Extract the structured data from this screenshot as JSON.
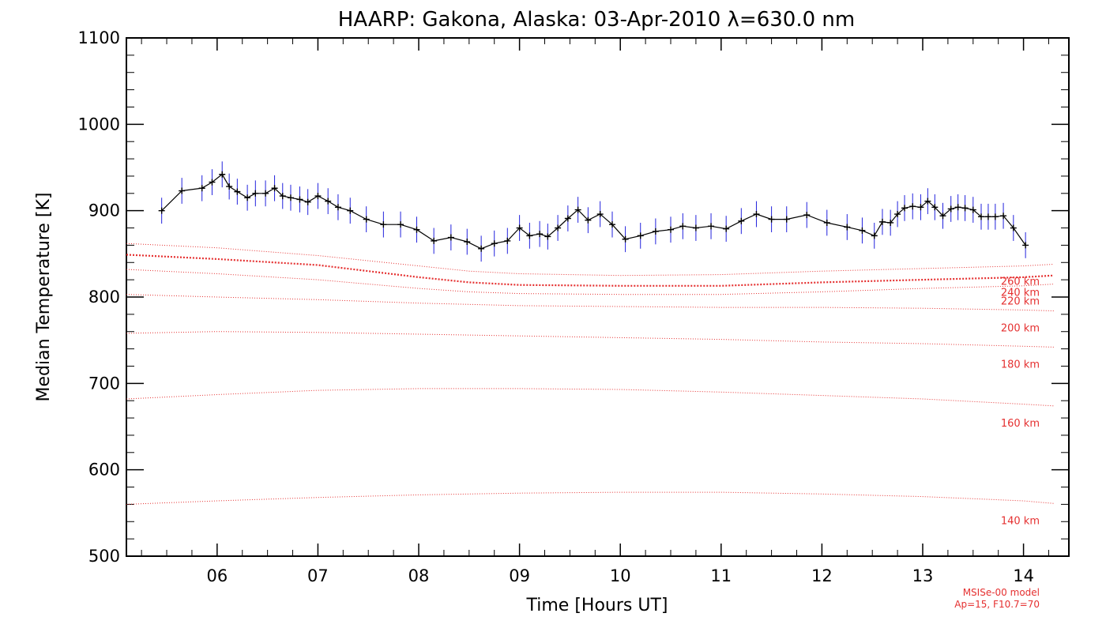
{
  "chart_data": {
    "type": "line",
    "title": "HAARP: Gakona,  Alaska: 03-Apr-2010 λ=630.0 nm",
    "xlabel": "Time [Hours UT]",
    "ylabel": "Median Temperature [K]",
    "xlim": [
      5.1,
      14.45
    ],
    "ylim": [
      500,
      1100
    ],
    "x_ticks": [
      6,
      7,
      8,
      9,
      10,
      11,
      12,
      13,
      14
    ],
    "x_tick_labels": [
      "06",
      "07",
      "08",
      "09",
      "10",
      "11",
      "12",
      "13",
      "14"
    ],
    "y_ticks": [
      500,
      600,
      700,
      800,
      900,
      1000,
      1100
    ],
    "y_tick_labels": [
      "500",
      "600",
      "700",
      "800",
      "900",
      "1000",
      "1100"
    ],
    "grid": false,
    "colors": {
      "data_line": "#000000",
      "error_bars": "#2222dd",
      "model": "#e53030"
    },
    "series": [
      {
        "x": [
          5.45,
          5.65,
          5.85,
          5.95,
          6.05,
          6.12,
          6.2,
          6.3,
          6.38,
          6.48,
          6.57,
          6.65,
          6.73,
          6.82,
          6.9,
          7.0,
          7.1,
          7.2,
          7.32,
          7.48,
          7.65,
          7.82,
          7.98,
          8.15,
          8.32,
          8.48,
          8.62,
          8.75,
          8.88,
          9.0,
          9.1,
          9.2,
          9.28,
          9.38,
          9.48,
          9.58,
          9.68,
          9.8,
          9.92,
          10.05,
          10.2,
          10.35,
          10.5,
          10.62,
          10.75,
          10.9,
          11.05,
          11.2,
          11.35,
          11.5,
          11.65,
          11.85,
          12.05,
          12.25,
          12.4,
          12.52,
          12.6,
          12.68,
          12.75,
          12.82,
          12.9,
          12.98,
          13.05,
          13.12,
          13.2,
          13.28,
          13.35,
          13.42,
          13.5,
          13.58,
          13.65,
          13.72,
          13.8,
          13.9,
          14.02
        ],
        "y": [
          900,
          923,
          926,
          933,
          942,
          928,
          922,
          915,
          920,
          920,
          926,
          917,
          915,
          913,
          910,
          917,
          911,
          904,
          900,
          890,
          884,
          884,
          878,
          865,
          869,
          864,
          856,
          862,
          865,
          880,
          871,
          873,
          870,
          880,
          891,
          901,
          889,
          896,
          884,
          867,
          871,
          876,
          878,
          882,
          880,
          882,
          879,
          888,
          896,
          890,
          890,
          895,
          886,
          881,
          877,
          871,
          887,
          886,
          896,
          903,
          905,
          904,
          911,
          904,
          894,
          902,
          904,
          903,
          901,
          893,
          893,
          893,
          894,
          880,
          860
        ],
        "error": 15
      }
    ],
    "model_curves": [
      {
        "label": "260 km",
        "x": [
          5.1,
          6,
          7,
          8,
          8.5,
          9,
          10,
          11,
          12,
          13,
          14,
          14.3
        ],
        "y": [
          862,
          857,
          848,
          836,
          830,
          827,
          825,
          826,
          830,
          833,
          836,
          838
        ]
      },
      {
        "label": "240 km",
        "x": [
          5.1,
          6,
          7,
          8,
          8.5,
          9,
          10,
          11,
          12,
          13,
          14,
          14.3
        ],
        "y": [
          849,
          844,
          837,
          823,
          817,
          814,
          813,
          813,
          817,
          820,
          823,
          825
        ]
      },
      {
        "label": "220 km",
        "x": [
          5.1,
          6,
          7,
          8,
          8.5,
          9,
          10,
          11,
          12,
          13,
          14,
          14.3
        ],
        "y": [
          832,
          827,
          820,
          810,
          806,
          804,
          803,
          803,
          806,
          810,
          813,
          815
        ]
      },
      {
        "label": "200 km",
        "x": [
          5.1,
          6,
          7,
          8,
          9,
          10,
          11,
          12,
          13,
          14,
          14.3
        ],
        "y": [
          803,
          800,
          797,
          793,
          790,
          789,
          788,
          788,
          787,
          785,
          784
        ]
      },
      {
        "label": "180 km",
        "x": [
          5.1,
          6,
          7,
          8,
          9,
          10,
          11,
          12,
          13,
          14,
          14.3
        ],
        "y": [
          758,
          760,
          759,
          757,
          755,
          753,
          751,
          748,
          746,
          743,
          742
        ]
      },
      {
        "label": "160 km",
        "x": [
          5.1,
          6,
          7,
          8,
          9,
          10,
          11,
          12,
          13,
          14,
          14.3
        ],
        "y": [
          682,
          687,
          692,
          694,
          694,
          693,
          690,
          686,
          682,
          676,
          674
        ]
      },
      {
        "label": "140 km",
        "x": [
          5.1,
          6,
          7,
          8,
          9,
          10,
          11,
          12,
          13,
          14,
          14.3
        ],
        "y": [
          560,
          564,
          568,
          571,
          573,
          574,
          574,
          572,
          569,
          564,
          561
        ]
      }
    ],
    "annotations": [
      "MSISe-00 model",
      "Ap=15, F10.7=70"
    ]
  }
}
